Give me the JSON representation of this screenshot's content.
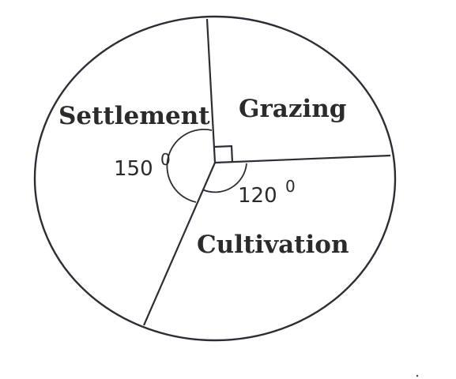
{
  "sectors": [
    {
      "label": "Settlement",
      "angle": "150",
      "degree_symbol": "0",
      "degrees": 150
    },
    {
      "label": "Grazing",
      "degrees": 90
    },
    {
      "label": "Cultivation",
      "angle": "120",
      "degree_symbol": "0",
      "degrees": 120
    }
  ],
  "colors": {
    "line": "#2d2d35",
    "text": "#2b2b2b",
    "background": "#ffffff"
  }
}
